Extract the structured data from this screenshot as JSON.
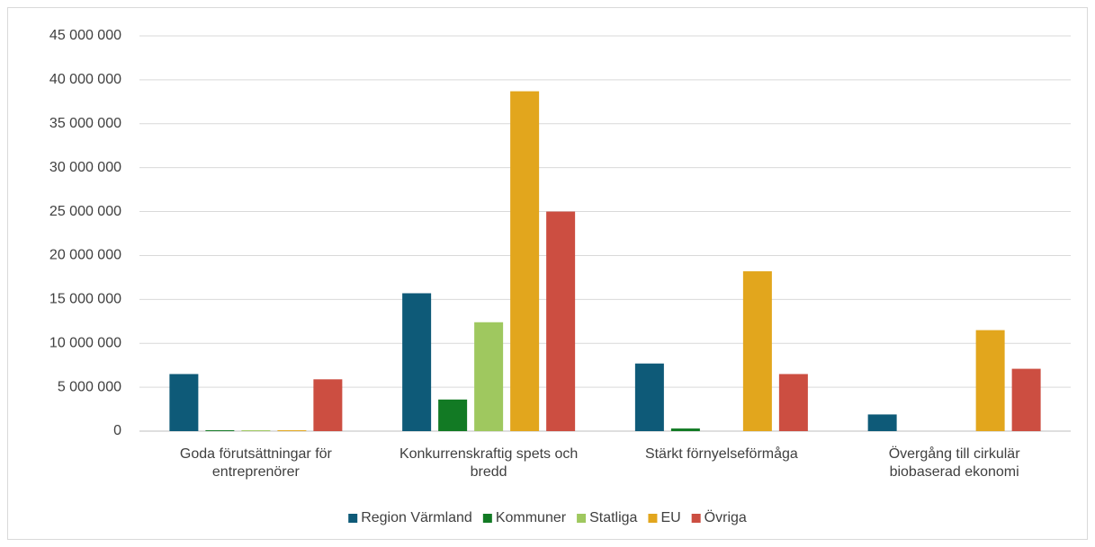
{
  "chart_data": {
    "type": "bar",
    "categories": [
      "Goda förutsättningar för entreprenörer",
      "Konkurrenskraftig spets och bredd",
      "Stärkt förnyelseförmåga",
      "Övergång till cirkulär biobaserad ekonomi"
    ],
    "series": [
      {
        "name": "Region Värmland",
        "color": "#0e5a78",
        "values": [
          6500000,
          15700000,
          7700000,
          1900000
        ]
      },
      {
        "name": "Kommuner",
        "color": "#127a24",
        "values": [
          100000,
          3600000,
          300000,
          0
        ]
      },
      {
        "name": "Statliga",
        "color": "#9fc85f",
        "values": [
          100000,
          12400000,
          0,
          0
        ]
      },
      {
        "name": "EU",
        "color": "#e2a61d",
        "values": [
          100000,
          38700000,
          18200000,
          11500000
        ]
      },
      {
        "name": "Övriga",
        "color": "#cc4e41",
        "values": [
          5900000,
          25000000,
          6500000,
          7100000
        ]
      }
    ],
    "ylim": [
      0,
      45000000
    ],
    "yticks": [
      0,
      {
        "value": 5000000,
        "label": "5 000 000"
      },
      {
        "value": 10000000,
        "label": "10 000 000"
      },
      {
        "value": 15000000,
        "label": "15 000 000"
      },
      {
        "value": 20000000,
        "label": "20 000 000"
      },
      {
        "value": 25000000,
        "label": "25 000 000"
      },
      {
        "value": 30000000,
        "label": "30 000 000"
      },
      {
        "value": 35000000,
        "label": "35 000 000"
      },
      {
        "value": 40000000,
        "label": "40 000 000"
      },
      {
        "value": 45000000,
        "label": "45 000 000"
      }
    ],
    "grid": true,
    "legend": "bottom"
  }
}
